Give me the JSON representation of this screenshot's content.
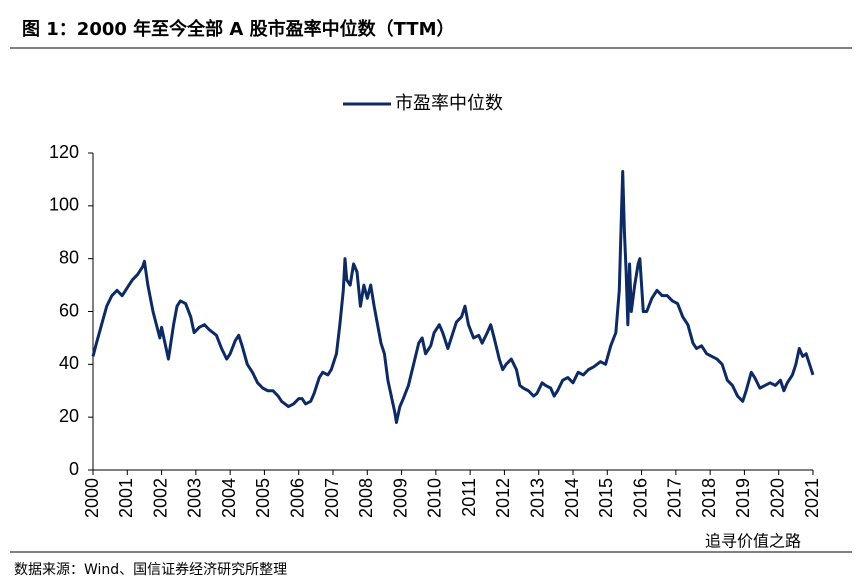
{
  "chart_data": {
    "type": "line",
    "title": "图 1：2000 年至今全部 A 股市盈率中位数（TTM）",
    "source": "数据来源：Wind、国信证券经济研究所整理",
    "watermark": "追寻价值之路",
    "x": [
      2000.0,
      2000.1,
      2000.25,
      2000.4,
      2000.55,
      2000.7,
      2000.85,
      2001.0,
      2001.15,
      2001.3,
      2001.45,
      2001.5,
      2001.6,
      2001.75,
      2001.85,
      2001.95,
      2002.0,
      2002.1,
      2002.2,
      2002.35,
      2002.45,
      2002.55,
      2002.7,
      2002.85,
      2002.95,
      2003.1,
      2003.25,
      2003.4,
      2003.6,
      2003.75,
      2003.9,
      2004.0,
      2004.15,
      2004.25,
      2004.35,
      2004.5,
      2004.65,
      2004.8,
      2004.95,
      2005.1,
      2005.25,
      2005.4,
      2005.5,
      2005.6,
      2005.7,
      2005.85,
      2006.0,
      2006.1,
      2006.2,
      2006.35,
      2006.45,
      2006.6,
      2006.7,
      2006.85,
      2006.95,
      2007.1,
      2007.2,
      2007.3,
      2007.35,
      2007.4,
      2007.5,
      2007.6,
      2007.7,
      2007.8,
      2007.9,
      2008.0,
      2008.1,
      2008.2,
      2008.3,
      2008.4,
      2008.5,
      2008.6,
      2008.7,
      2008.8,
      2008.85,
      2008.95,
      2009.05,
      2009.2,
      2009.35,
      2009.5,
      2009.6,
      2009.7,
      2009.85,
      2009.95,
      2010.1,
      2010.2,
      2010.35,
      2010.45,
      2010.6,
      2010.75,
      2010.85,
      2010.95,
      2011.1,
      2011.25,
      2011.35,
      2011.5,
      2011.6,
      2011.7,
      2011.85,
      2011.95,
      2012.05,
      2012.2,
      2012.35,
      2012.45,
      2012.55,
      2012.7,
      2012.85,
      2012.95,
      2013.1,
      2013.2,
      2013.35,
      2013.45,
      2013.55,
      2013.7,
      2013.85,
      2014.0,
      2014.15,
      2014.3,
      2014.45,
      2014.6,
      2014.8,
      2014.95,
      2015.1,
      2015.25,
      2015.35,
      2015.42,
      2015.45,
      2015.5,
      2015.55,
      2015.6,
      2015.65,
      2015.7,
      2015.8,
      2015.9,
      2015.95,
      2016.05,
      2016.15,
      2016.3,
      2016.45,
      2016.6,
      2016.75,
      2016.9,
      2017.05,
      2017.2,
      2017.35,
      2017.5,
      2017.6,
      2017.75,
      2017.9,
      2018.05,
      2018.2,
      2018.35,
      2018.5,
      2018.65,
      2018.8,
      2018.95,
      2019.05,
      2019.2,
      2019.3,
      2019.45,
      2019.6,
      2019.75,
      2019.9,
      2020.05,
      2020.15,
      2020.25,
      2020.4,
      2020.5,
      2020.6,
      2020.7,
      2020.8,
      2020.9,
      2021.0
    ],
    "series": [
      {
        "name": "市盈率中位数",
        "color": "#0d2a63",
        "values": [
          43,
          48,
          55,
          62,
          66,
          68,
          66,
          69,
          72,
          74,
          77,
          79,
          70,
          60,
          55,
          50,
          54,
          48,
          42,
          55,
          62,
          64,
          63,
          58,
          52,
          54,
          55,
          53,
          51,
          46,
          42,
          44,
          49,
          51,
          47,
          40,
          37,
          33,
          31,
          30,
          30,
          28,
          26,
          25,
          24,
          25,
          27,
          27,
          25,
          26,
          29,
          35,
          37,
          36,
          38,
          44,
          55,
          68,
          80,
          72,
          70,
          78,
          75,
          62,
          70,
          65,
          70,
          62,
          55,
          48,
          44,
          34,
          28,
          22,
          18,
          24,
          27,
          32,
          40,
          48,
          50,
          44,
          47,
          52,
          55,
          52,
          46,
          50,
          56,
          58,
          62,
          55,
          50,
          51,
          48,
          52,
          55,
          50,
          42,
          38,
          40,
          42,
          38,
          32,
          31,
          30,
          28,
          29,
          33,
          32,
          31,
          28,
          30,
          34,
          35,
          33,
          37,
          36,
          38,
          39,
          41,
          40,
          47,
          52,
          68,
          100,
          113,
          90,
          75,
          55,
          78,
          60,
          70,
          78,
          80,
          60,
          60,
          65,
          68,
          66,
          66,
          64,
          63,
          58,
          55,
          48,
          46,
          47,
          44,
          43,
          42,
          40,
          34,
          32,
          28,
          26,
          30,
          37,
          35,
          31,
          32,
          33,
          32,
          34,
          30,
          33,
          36,
          40,
          46,
          43,
          44,
          40,
          36
        ]
      }
    ],
    "xlim": [
      2000,
      2021
    ],
    "xticks": [
      2000,
      2001,
      2002,
      2003,
      2004,
      2005,
      2006,
      2007,
      2008,
      2009,
      2010,
      2011,
      2012,
      2013,
      2014,
      2015,
      2016,
      2017,
      2018,
      2019,
      2020,
      2021
    ],
    "ylim": [
      0,
      120
    ],
    "yticks": [
      0,
      20,
      40,
      60,
      80,
      100,
      120
    ],
    "grid": false,
    "legend": "top"
  }
}
